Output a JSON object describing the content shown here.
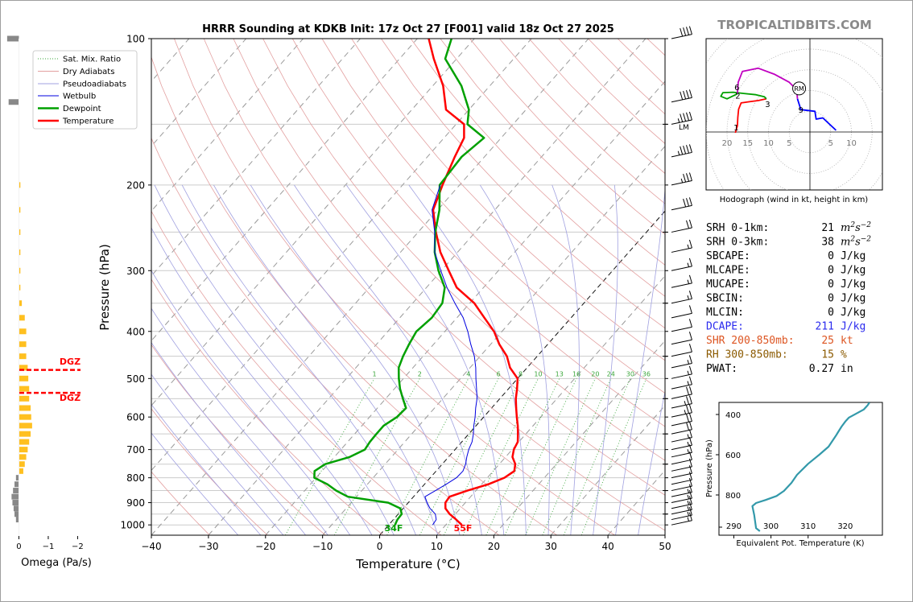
{
  "header": {
    "title": "HRRR Sounding at KDKB Init: 17z Oct 27 [F001] valid 18z Oct 27 2025",
    "brand": "TROPICALTIDBITS.COM"
  },
  "chart_data": [
    {
      "id": "skewt",
      "type": "line",
      "title": "HRRR Sounding at KDKB Init: 17z Oct 27 [F001] valid 18z Oct 27 2025",
      "xlabel": "Temperature (°C)",
      "ylabel": "Pressure (hPa)",
      "xlim": [
        -40,
        50
      ],
      "ylim": [
        1050,
        100
      ],
      "yscale": "log",
      "x_ticks": [
        "−40",
        "−30",
        "−20",
        "−10",
        "0",
        "10",
        "20",
        "30",
        "40",
        "50"
      ],
      "y_ticks": [
        "100",
        "200",
        "300",
        "400",
        "500",
        "600",
        "700",
        "800",
        "900",
        "1000"
      ],
      "legend": {
        "placement": "top-left",
        "entries": [
          "Sat. Mix. Ratio",
          "Dry Adiabats",
          "Pseudoadiabats",
          "Wetbulb",
          "Dewpoint",
          "Temperature"
        ]
      },
      "mixing_ratio_labels": [
        "1",
        "2",
        "4",
        "6",
        "8",
        "10",
        "13",
        "16",
        "20",
        "24",
        "30",
        "36"
      ],
      "surface_labels": {
        "temperature": "55F",
        "dewpoint": "34F"
      },
      "series": [
        {
          "name": "Temperature",
          "color": "#ff0000",
          "points": [
            [
              12.8,
              1000
            ],
            [
              11,
              975
            ],
            [
              9,
              950
            ],
            [
              7.4,
              925
            ],
            [
              6.5,
              900
            ],
            [
              6.3,
              875
            ],
            [
              8.5,
              850
            ],
            [
              11.2,
              825
            ],
            [
              13,
              800
            ],
            [
              13.7,
              775
            ],
            [
              12.8,
              750
            ],
            [
              11.2,
              725
            ],
            [
              10.3,
              700
            ],
            [
              9.8,
              675
            ],
            [
              8.6,
              650
            ],
            [
              7.3,
              625
            ],
            [
              5.8,
              600
            ],
            [
              4.3,
              575
            ],
            [
              2.8,
              550
            ],
            [
              1.5,
              525
            ],
            [
              0,
              500
            ],
            [
              -3,
              475
            ],
            [
              -5.3,
              450
            ],
            [
              -8.5,
              425
            ],
            [
              -11.4,
              400
            ],
            [
              -15.2,
              375
            ],
            [
              -19.2,
              350
            ],
            [
              -24.7,
              325
            ],
            [
              -28.7,
              300
            ],
            [
              -33,
              275
            ],
            [
              -36.9,
              250
            ],
            [
              -40.8,
              225
            ],
            [
              -43,
              200
            ],
            [
              -45.2,
              175
            ],
            [
              -46.5,
              160
            ],
            [
              -48.6,
              150
            ],
            [
              -54,
              140
            ],
            [
              -58.2,
              125
            ],
            [
              -64,
              110
            ],
            [
              -68,
              100
            ]
          ]
        },
        {
          "name": "Dewpoint",
          "color": "#00a000",
          "points": [
            [
              1.1,
              1000
            ],
            [
              0.7,
              975
            ],
            [
              0.6,
              950
            ],
            [
              -0.5,
              925
            ],
            [
              -3.5,
              900
            ],
            [
              -11.5,
              875
            ],
            [
              -14.5,
              850
            ],
            [
              -17,
              825
            ],
            [
              -20.3,
              800
            ],
            [
              -21.3,
              775
            ],
            [
              -20.5,
              750
            ],
            [
              -17.3,
              725
            ],
            [
              -15.8,
              700
            ],
            [
              -16.1,
              675
            ],
            [
              -16.2,
              650
            ],
            [
              -16.2,
              625
            ],
            [
              -15.2,
              600
            ],
            [
              -15,
              575
            ],
            [
              -17,
              550
            ],
            [
              -19,
              525
            ],
            [
              -20.8,
              500
            ],
            [
              -22.5,
              475
            ],
            [
              -23.5,
              450
            ],
            [
              -24.3,
              425
            ],
            [
              -25,
              400
            ],
            [
              -24.4,
              375
            ],
            [
              -24.8,
              350
            ],
            [
              -26.8,
              325
            ],
            [
              -30.5,
              300
            ],
            [
              -34,
              275
            ],
            [
              -37,
              250
            ],
            [
              -39.7,
              225
            ],
            [
              -43.5,
              200
            ],
            [
              -44,
              175
            ],
            [
              -43,
              160
            ],
            [
              -48,
              150
            ],
            [
              -50,
              140
            ],
            [
              -55,
              125
            ],
            [
              -62,
              110
            ],
            [
              -64,
              100
            ]
          ]
        },
        {
          "name": "Wetbulb",
          "color": "#0000e0",
          "points": [
            [
              7.7,
              1000
            ],
            [
              7.5,
              975
            ],
            [
              6.5,
              950
            ],
            [
              4.7,
              925
            ],
            [
              3.3,
              900
            ],
            [
              2,
              875
            ],
            [
              2.9,
              850
            ],
            [
              3.8,
              825
            ],
            [
              4.6,
              800
            ],
            [
              4.7,
              775
            ],
            [
              4.1,
              750
            ],
            [
              3.2,
              725
            ],
            [
              2.4,
              700
            ],
            [
              1.8,
              675
            ],
            [
              0.8,
              650
            ],
            [
              -0.4,
              625
            ],
            [
              -1.5,
              600
            ],
            [
              -2.8,
              575
            ],
            [
              -4,
              550
            ],
            [
              -5.6,
              525
            ],
            [
              -7.3,
              500
            ],
            [
              -9,
              475
            ],
            [
              -11,
              450
            ],
            [
              -13.5,
              425
            ],
            [
              -16,
              400
            ],
            [
              -18.9,
              375
            ],
            [
              -22.6,
              350
            ],
            [
              -26.4,
              325
            ],
            [
              -30.1,
              300
            ],
            [
              -34,
              275
            ],
            [
              -37.1,
              250
            ],
            [
              -41,
              225
            ],
            [
              -43.4,
              200
            ]
          ]
        }
      ],
      "dgz": {
        "label": "DGZ",
        "pressures_hpa": [
          480,
          535
        ],
        "color": "#ff0000"
      }
    },
    {
      "id": "omega",
      "type": "bar",
      "xlabel": "Omega (Pa/s)",
      "xlim": [
        0.15,
        -2.4
      ],
      "x_ticks": [
        "0",
        "−1",
        "−2"
      ],
      "values_by_pressure": [
        [
          100,
          0.4
        ],
        [
          135,
          0.35
        ],
        [
          200,
          -0.05
        ],
        [
          225,
          -0.05
        ],
        [
          250,
          -0.05
        ],
        [
          275,
          -0.05
        ],
        [
          300,
          -0.05
        ],
        [
          325,
          -0.05
        ],
        [
          350,
          -0.1
        ],
        [
          375,
          -0.2
        ],
        [
          400,
          -0.25
        ],
        [
          425,
          -0.25
        ],
        [
          450,
          -0.25
        ],
        [
          475,
          -0.3
        ],
        [
          500,
          -0.32
        ],
        [
          525,
          -0.35
        ],
        [
          550,
          -0.35
        ],
        [
          575,
          -0.4
        ],
        [
          600,
          -0.42
        ],
        [
          625,
          -0.45
        ],
        [
          650,
          -0.4
        ],
        [
          675,
          -0.35
        ],
        [
          700,
          -0.3
        ],
        [
          725,
          -0.25
        ],
        [
          750,
          -0.2
        ],
        [
          775,
          -0.15
        ],
        [
          800,
          0.1
        ],
        [
          825,
          0.15
        ],
        [
          850,
          0.2
        ],
        [
          875,
          0.25
        ],
        [
          900,
          0.22
        ],
        [
          925,
          0.18
        ],
        [
          950,
          0.15
        ],
        [
          975,
          0.1
        ]
      ],
      "colors": {
        "ascent": "#ffc020",
        "descent": "#888888"
      }
    },
    {
      "id": "hodograph",
      "type": "line",
      "title": "Hodograph (wind in kt, height in km)",
      "ring_labels": [
        "20",
        "15",
        "10",
        "5",
        "5",
        "10"
      ],
      "height_labels": [
        "1",
        "2",
        "3",
        "6",
        "9"
      ],
      "storm_motion_label": "RM",
      "segments": [
        {
          "km": "0-3",
          "color": "#ff0000",
          "points": [
            [
              -18,
              -0.2
            ],
            [
              -17.5,
              1.5
            ],
            [
              -17.4,
              3.5
            ],
            [
              -17.2,
              5.5
            ],
            [
              -16.6,
              7
            ],
            [
              -14.6,
              7.3
            ],
            [
              -12.4,
              7.6
            ],
            [
              -10.5,
              8
            ]
          ]
        },
        {
          "km": "3-6",
          "color": "#00a000",
          "points": [
            [
              -10.5,
              8
            ],
            [
              -11,
              8.5
            ],
            [
              -13,
              9
            ],
            [
              -16,
              9.3
            ],
            [
              -18.5,
              9.6
            ],
            [
              -21,
              9.5
            ],
            [
              -21.5,
              8.6
            ],
            [
              -20,
              8
            ],
            [
              -17.5,
              9.2
            ]
          ]
        },
        {
          "km": "6-9",
          "color": "#c000c0",
          "points": [
            [
              -17.5,
              9.2
            ],
            [
              -17.3,
              12
            ],
            [
              -16.3,
              14.6
            ],
            [
              -12.5,
              15.4
            ],
            [
              -8.5,
              13.9
            ],
            [
              -5,
              12
            ],
            [
              -3.2,
              10.2
            ],
            [
              -3,
              8
            ]
          ]
        },
        {
          "km": "9+",
          "color": "#0000ff",
          "points": [
            [
              -3,
              8
            ],
            [
              -2.2,
              5.4
            ],
            [
              1.2,
              5
            ],
            [
              1.5,
              3.1
            ],
            [
              3.1,
              3.4
            ],
            [
              6.3,
              0.4
            ]
          ]
        }
      ],
      "storm_motion_kt": [
        -2.8,
        10.5
      ]
    },
    {
      "id": "theta_e",
      "type": "line",
      "xlabel": "Equivalent Pot. Temperature (K)",
      "ylabel": "Pressure (hPa)",
      "xlim": [
        286,
        330
      ],
      "ylim": [
        1000,
        340
      ],
      "x_ticks": [
        "290",
        "300",
        "310",
        "320"
      ],
      "y_ticks": [
        "400",
        "600",
        "800"
      ],
      "color": "#3399aa",
      "points": [
        [
          297,
          980
        ],
        [
          296,
          965
        ],
        [
          295.8,
          940
        ],
        [
          295.5,
          900
        ],
        [
          295,
          855
        ],
        [
          296,
          840
        ],
        [
          298.5,
          825
        ],
        [
          301.5,
          805
        ],
        [
          303.5,
          780
        ],
        [
          305.5,
          740
        ],
        [
          307,
          700
        ],
        [
          310,
          645
        ],
        [
          313,
          600
        ],
        [
          315.5,
          560
        ],
        [
          317.5,
          505
        ],
        [
          318,
          490
        ],
        [
          319,
          460
        ],
        [
          320,
          435
        ],
        [
          321,
          415
        ],
        [
          323,
          395
        ],
        [
          325,
          375
        ],
        [
          326,
          355
        ],
        [
          326.5,
          340
        ]
      ]
    }
  ],
  "indices": [
    {
      "label": "SRH 0-1km:",
      "value": "21",
      "unit": "m2s-2",
      "color": "#000000"
    },
    {
      "label": "SRH 0-3km:",
      "value": "38",
      "unit": "m2s-2",
      "color": "#000000"
    },
    {
      "label": "SBCAPE:",
      "value": "0",
      "unit": "J/kg",
      "color": "#000000"
    },
    {
      "label": "MLCAPE:",
      "value": "0",
      "unit": "J/kg",
      "color": "#000000"
    },
    {
      "label": "MUCAPE:",
      "value": "0",
      "unit": "J/kg",
      "color": "#000000"
    },
    {
      "label": "SBCIN:",
      "value": "0",
      "unit": "J/kg",
      "color": "#000000"
    },
    {
      "label": "MLCIN:",
      "value": "0",
      "unit": "J/kg",
      "color": "#000000"
    },
    {
      "label": "DCAPE:",
      "value": "211",
      "unit": "J/kg",
      "color": "#2a2aee"
    },
    {
      "label": "SHR 200-850mb:",
      "value": "25",
      "unit": "kt",
      "color": "#dd5522"
    },
    {
      "label": "RH 300-850mb:",
      "value": "15",
      "unit": "%",
      "color": "#8b5a00"
    },
    {
      "label": "PWAT:",
      "value": "0.27",
      "unit": "in",
      "color": "#000000"
    }
  ],
  "wind_barbs": {
    "label": "LM",
    "levels_hpa": [
      100,
      135,
      150,
      175,
      200,
      225,
      250,
      275,
      300,
      325,
      350,
      375,
      400,
      425,
      450,
      475,
      500,
      525,
      550,
      575,
      600,
      625,
      650,
      675,
      700,
      725,
      750,
      775,
      800,
      825,
      850,
      875,
      900,
      925,
      950,
      975,
      1000
    ],
    "speeds_kt": [
      40,
      40,
      45,
      45,
      35,
      30,
      20,
      15,
      15,
      15,
      15,
      10,
      10,
      10,
      10,
      15,
      15,
      15,
      20,
      25,
      25,
      20,
      20,
      15,
      15,
      15,
      10,
      10,
      10,
      10,
      10,
      15,
      15,
      15,
      15,
      15,
      15
    ]
  }
}
